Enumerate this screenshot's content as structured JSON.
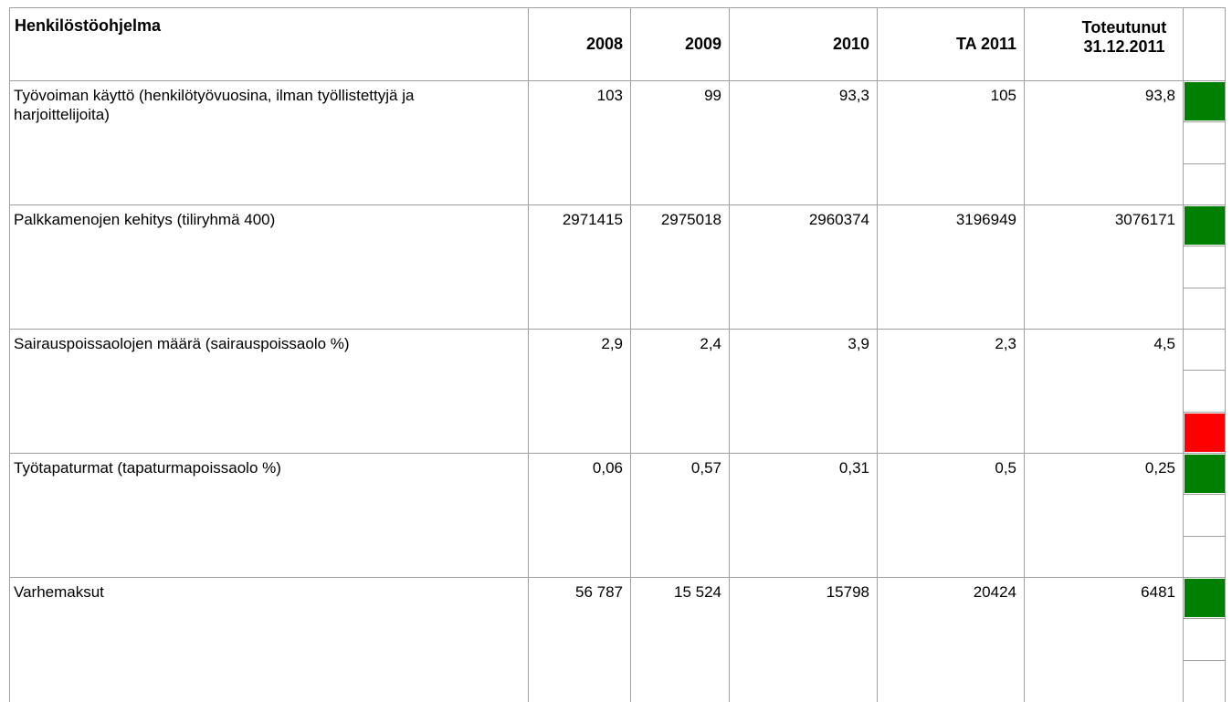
{
  "table": {
    "header": [
      "Henkilöstöohjelma",
      "2008",
      "2009",
      "2010",
      "TA 2011",
      "Toteutunut 31.12.2011"
    ],
    "rows": [
      {
        "label": "Työvoiman käyttö (henkilötyövuosina, ilman työllistettyjä ja  harjoittelijoita)",
        "values": [
          "103",
          "99",
          "93,3",
          "105",
          "93,8"
        ],
        "lights": [
          "#008000",
          "#ffffff",
          "#ffffff"
        ]
      },
      {
        "label": "Palkkamenojen kehitys (tiliryhmä 400)",
        "values": [
          "2971415",
          "2975018",
          "2960374",
          "3196949",
          "3076171"
        ],
        "lights": [
          "#008000",
          "#ffffff",
          "#ffffff"
        ]
      },
      {
        "label": "Sairauspoissaolojen määrä (sairauspoissaolo %)",
        "values": [
          "2,9",
          "2,4",
          "3,9",
          "2,3",
          "4,5"
        ],
        "lights": [
          "#ffffff",
          "#ffffff",
          "#ff0000"
        ]
      },
      {
        "label": "Työtapaturmat (tapaturmapoissaolo %)",
        "values": [
          "0,06",
          "0,57",
          "0,31",
          "0,5",
          "0,25"
        ],
        "lights": [
          "#008000",
          "#ffffff",
          "#ffffff"
        ]
      },
      {
        "label": "Varhemaksut",
        "values": [
          "56 787",
          "15 524",
          "15798",
          "20424",
          "6481"
        ],
        "lights": [
          "#008000",
          "#ffffff",
          "#ffffff"
        ]
      }
    ]
  }
}
